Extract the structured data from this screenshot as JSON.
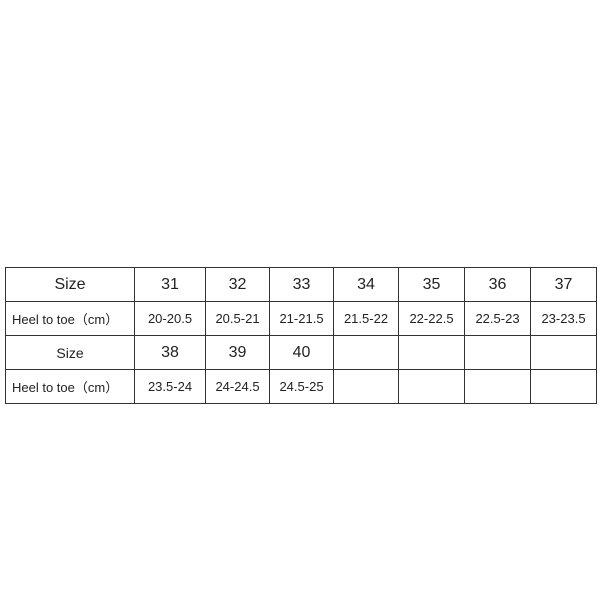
{
  "rows": [
    {
      "label": "Size",
      "cells": [
        "31",
        "32",
        "33",
        "34",
        "35",
        "36",
        "37"
      ]
    },
    {
      "label": "Heel to toe（cm）",
      "cells": [
        "20-20.5",
        "20.5-21",
        "21-21.5",
        "21.5-22",
        "22-22.5",
        "22.5-23",
        "23-23.5"
      ]
    },
    {
      "label": "Size",
      "cells": [
        "38",
        "39",
        "40",
        "",
        "",
        "",
        ""
      ]
    },
    {
      "label": "Heel to toe（cm）",
      "cells": [
        "23.5-24",
        "24-24.5",
        "24.5-25",
        "",
        "",
        "",
        ""
      ]
    }
  ]
}
